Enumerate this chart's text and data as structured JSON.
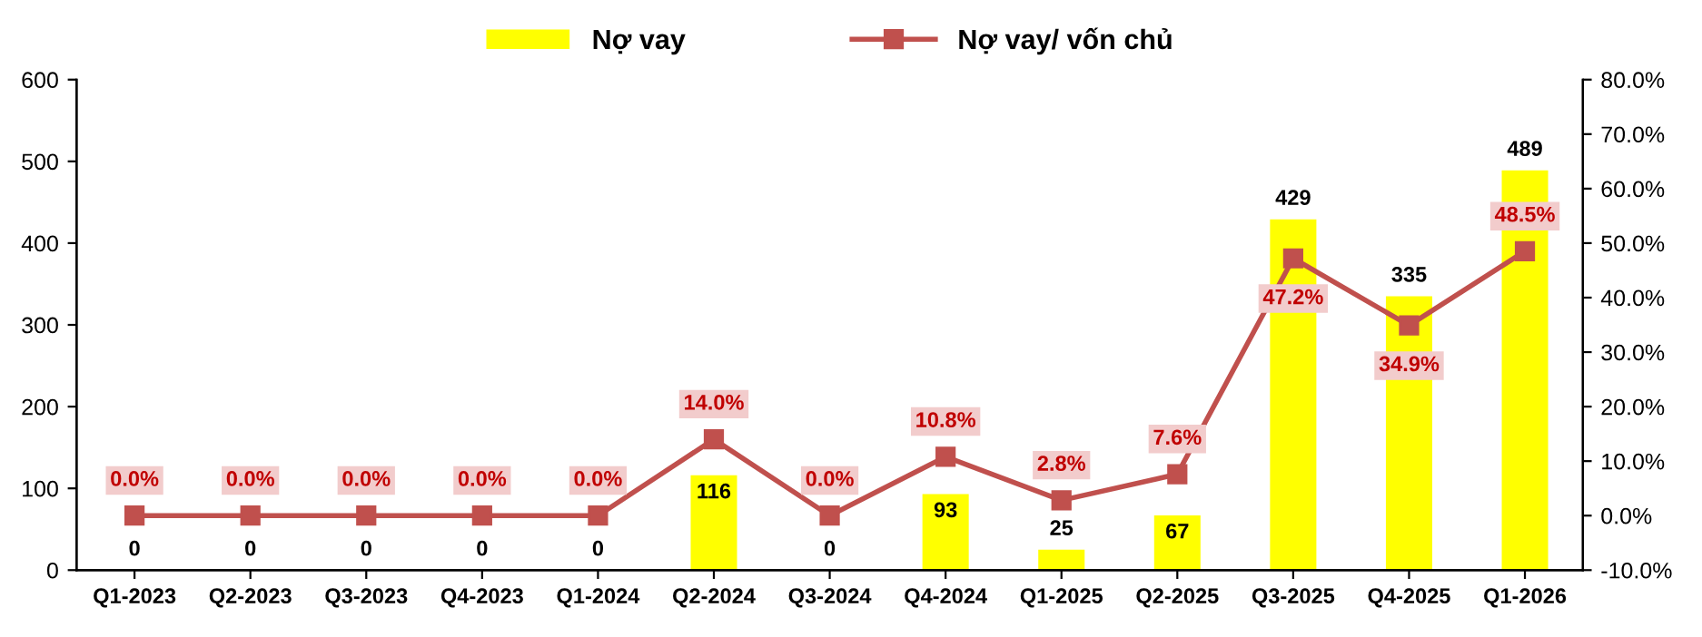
{
  "chart_data": {
    "type": "bar",
    "categories": [
      "Q1-2023",
      "Q2-2023",
      "Q3-2023",
      "Q4-2023",
      "Q1-2024",
      "Q2-2024",
      "Q3-2024",
      "Q4-2024",
      "Q1-2025",
      "Q2-2025",
      "Q3-2025",
      "Q4-2025",
      "Q1-2026"
    ],
    "series": [
      {
        "name": "Nợ vay",
        "color": "#ffff00",
        "values": [
          0,
          0,
          0,
          0,
          0,
          116,
          0,
          93,
          25,
          67,
          429,
          335,
          489
        ],
        "value_labels": [
          "0",
          "0",
          "0",
          "0",
          "0",
          "116",
          "0",
          "93",
          "25",
          "67",
          "429",
          "335",
          "489"
        ]
      },
      {
        "name": "Nợ vay/ vốn chủ",
        "type": "line",
        "axis": "y2",
        "color": "#c0504d",
        "marker": "square",
        "line_style": "solid",
        "values": [
          0.0,
          0.0,
          0.0,
          0.0,
          0.0,
          14.0,
          0.0,
          10.8,
          2.8,
          7.6,
          47.2,
          34.9,
          48.5
        ],
        "value_labels": [
          "0.0%",
          "0.0%",
          "0.0%",
          "0.0%",
          "0.0%",
          "14.0%",
          "0.0%",
          "10.8%",
          "2.8%",
          "7.6%",
          "47.2%",
          "34.9%",
          "48.5%"
        ]
      }
    ],
    "ylim": [
      0,
      600
    ],
    "yticks": [
      0,
      100,
      200,
      300,
      400,
      500,
      600
    ],
    "y2lim": [
      -10,
      80
    ],
    "y2ticks": [
      {
        "value": -10,
        "label": "-10.0%"
      },
      {
        "value": 0,
        "label": "0.0%"
      },
      {
        "value": 10,
        "label": "10.0%"
      },
      {
        "value": 20,
        "label": "20.0%"
      },
      {
        "value": 30,
        "label": "30.0%"
      },
      {
        "value": 40,
        "label": "40.0%"
      },
      {
        "value": 50,
        "label": "50.0%"
      },
      {
        "value": 60,
        "label": "60.0%"
      },
      {
        "value": 70,
        "label": "70.0%"
      },
      {
        "value": 80,
        "label": "80.0%"
      }
    ],
    "legend": "top",
    "grid": false
  }
}
